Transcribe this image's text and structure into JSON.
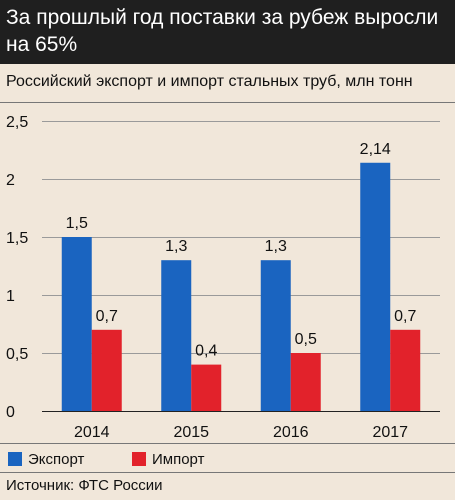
{
  "header": {
    "title": "За прошлый год поставки за рубеж выросли на 65%"
  },
  "subtitle": "Российский экспорт и импорт стальных труб, млн тонн",
  "source": "Источник: ФТС России",
  "colors": {
    "export": "#1a64c0",
    "import": "#e2222b",
    "background": "#f1e7da",
    "header_bg": "#1f1f1f"
  },
  "chart_data": {
    "type": "bar",
    "categories": [
      "2014",
      "2015",
      "2016",
      "2017"
    ],
    "series": [
      {
        "name": "Экспорт",
        "values": [
          1.5,
          1.3,
          1.3,
          2.14
        ],
        "labels": [
          "1,5",
          "1,3",
          "1,3",
          "2,14"
        ]
      },
      {
        "name": "Импорт",
        "values": [
          0.7,
          0.4,
          0.5,
          0.7
        ],
        "labels": [
          "0,7",
          "0,4",
          "0,5",
          "0,7"
        ]
      }
    ],
    "yticks": [
      0,
      0.5,
      1,
      1.5,
      2,
      2.5
    ],
    "ytick_labels": [
      "0",
      "0,5",
      "1",
      "1,5",
      "2",
      "2,5"
    ],
    "ylim": [
      0,
      2.5
    ],
    "grid": true,
    "legend": "bottom-left"
  }
}
